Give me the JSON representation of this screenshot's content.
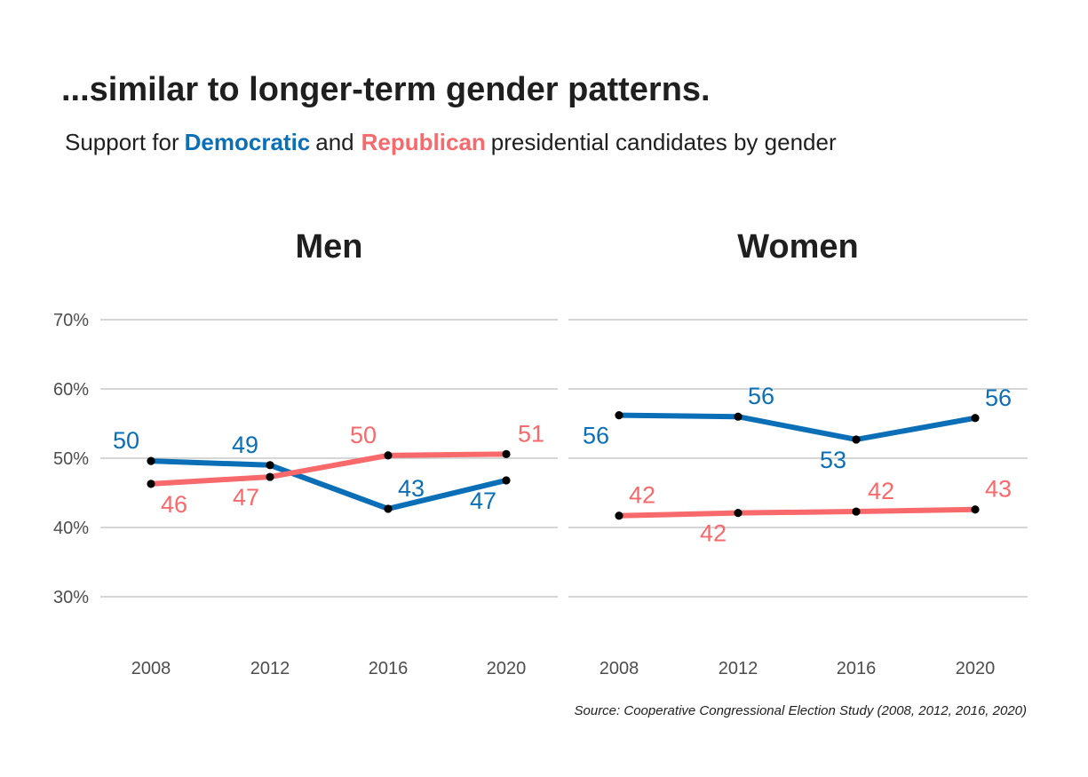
{
  "header": {
    "title": "...similar to longer-term gender patterns.",
    "subtitle_prefix": "Support for",
    "subtitle_dem": "Democratic",
    "subtitle_and": "and",
    "subtitle_rep": "Republican",
    "subtitle_suffix": "presidential candidates by gender"
  },
  "source": "Source: Cooperative Congressional Election Study (2008, 2012, 2016, 2020)",
  "colors": {
    "democratic": "#0a6fb7",
    "republican": "#f8696b",
    "point": "#000000",
    "grid": "#c8c8c8"
  },
  "chart_data": {
    "type": "line",
    "x": [
      2008,
      2012,
      2016,
      2020
    ],
    "x_tick_labels": [
      "2008",
      "2012",
      "2016",
      "2020"
    ],
    "y_ticks": [
      30,
      40,
      50,
      60,
      70
    ],
    "y_tick_labels": [
      "30%",
      "40%",
      "50%",
      "60%",
      "70%"
    ],
    "ylim": [
      22,
      70
    ],
    "grid": true,
    "facets": [
      {
        "title": "Men",
        "series": [
          {
            "name": "Democratic",
            "values": [
              49.6,
              49.0,
              42.7,
              46.8
            ],
            "labels": [
              "50",
              "49",
              "43",
              "47"
            ]
          },
          {
            "name": "Republican",
            "values": [
              46.3,
              47.3,
              50.4,
              50.6
            ],
            "labels": [
              "46",
              "47",
              "50",
              "51"
            ]
          }
        ]
      },
      {
        "title": "Women",
        "series": [
          {
            "name": "Democratic",
            "values": [
              56.2,
              56.0,
              52.7,
              55.8
            ],
            "labels": [
              "56",
              "56",
              "53",
              "56"
            ]
          },
          {
            "name": "Republican",
            "values": [
              41.7,
              42.1,
              42.3,
              42.6
            ],
            "labels": [
              "42",
              "42",
              "42",
              "43"
            ]
          }
        ]
      }
    ]
  }
}
